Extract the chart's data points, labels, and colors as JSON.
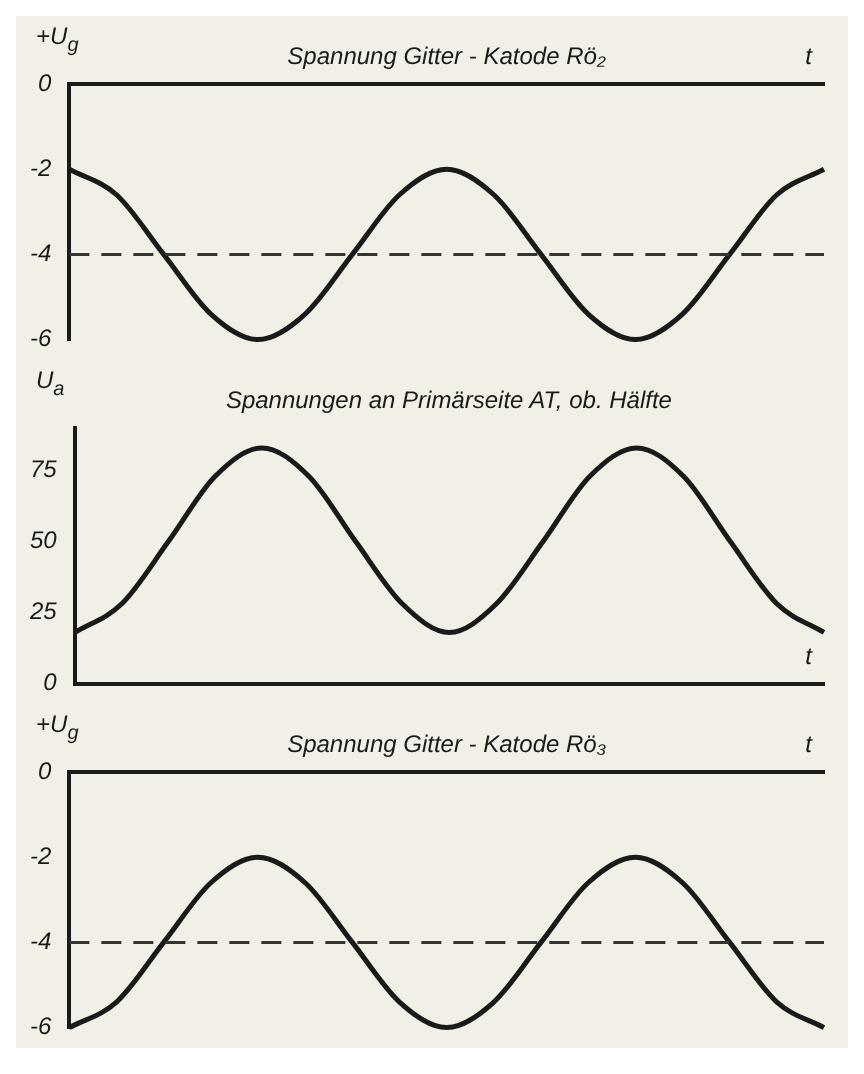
{
  "chart_data": [
    {
      "type": "line",
      "title": "Spannung Gitter - Katode Rö₂",
      "xlabel": "t",
      "ylabel": "+U$_{g}$",
      "categories": [
        null,
        null,
        null,
        null,
        null,
        null,
        null,
        null,
        null,
        null,
        null,
        null,
        null,
        null,
        null,
        null,
        null
      ],
      "series": [
        {
          "color": "#1a1a1a",
          "values": [
            -2,
            -2.6,
            -4,
            -5.4,
            -6,
            -5.4,
            -4,
            -2.6,
            -2,
            -2.6,
            -4,
            -5.4,
            -6,
            -5.4,
            -4,
            -2.6,
            -2
          ]
        }
      ],
      "ylim": [
        -6,
        0
      ],
      "yticks": [
        0,
        -2,
        -4,
        -6
      ],
      "ref_lines": [
        {
          "axis": "y",
          "value": -4,
          "color": "#333333",
          "line_style": "dashed"
        }
      ],
      "tick_labels": "y",
      "grid": false,
      "legend": false,
      "marker": "none",
      "line_style": "solid"
    },
    {
      "type": "line",
      "title": "Spannungen an Primärseite AT, ob. Hälfte",
      "xlabel": "t",
      "ylabel": "U$_{a}$",
      "categories": [
        null,
        null,
        null,
        null,
        null,
        null,
        null,
        null,
        null,
        null,
        null,
        null,
        null,
        null,
        null,
        null,
        null
      ],
      "series": [
        {
          "color": "#1a1a1a",
          "values": [
            18,
            28,
            50,
            73,
            83,
            73,
            50,
            28,
            18,
            28,
            50,
            73,
            83,
            73,
            50,
            28,
            18
          ]
        }
      ],
      "ylim": [
        0,
        90
      ],
      "yticks": [
        0,
        25,
        50,
        75
      ],
      "tick_labels": "y",
      "grid": false,
      "legend": false,
      "marker": "none",
      "line_style": "solid"
    },
    {
      "type": "line",
      "title": "Spannung Gitter - Katode Rö₃",
      "xlabel": "t",
      "ylabel": "+U$_{g}$",
      "categories": [
        null,
        null,
        null,
        null,
        null,
        null,
        null,
        null,
        null,
        null,
        null,
        null,
        null,
        null,
        null,
        null,
        null
      ],
      "series": [
        {
          "color": "#1a1a1a",
          "values": [
            -6,
            -5.4,
            -4,
            -2.6,
            -2,
            -2.6,
            -4,
            -5.4,
            -6,
            -5.4,
            -4,
            -2.6,
            -2,
            -2.6,
            -4,
            -5.4,
            -6
          ]
        }
      ],
      "ylim": [
        -6,
        0
      ],
      "yticks": [
        0,
        -2,
        -4,
        -6
      ],
      "ref_lines": [
        {
          "axis": "y",
          "value": -4,
          "color": "#333333",
          "line_style": "dashed"
        }
      ],
      "tick_labels": "y",
      "grid": false,
      "legend": false,
      "marker": "none",
      "line_style": "solid"
    }
  ]
}
